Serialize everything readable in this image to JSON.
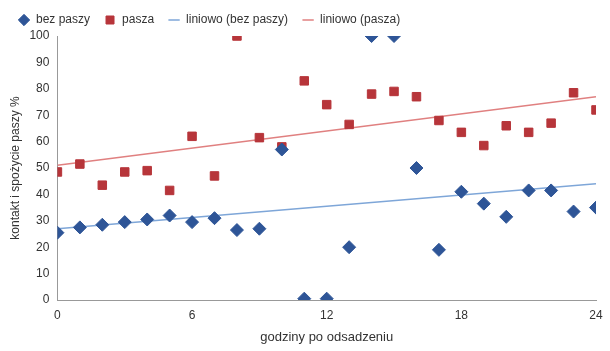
{
  "chart_data": {
    "type": "scatter",
    "x_label": "godziny po odsadzeniu",
    "y_label": "kontakt i spożycie paszy %",
    "xlim": [
      0,
      24
    ],
    "xticks": [
      0,
      6,
      12,
      18,
      24
    ],
    "ylim": [
      0,
      100
    ],
    "yticks": [
      0,
      10,
      20,
      30,
      40,
      50,
      60,
      70,
      80,
      90,
      100
    ],
    "grid": false,
    "legend": "top",
    "series": [
      {
        "name": "bez paszy",
        "type": "scatter",
        "marker": "diamond",
        "color": "#2e5597",
        "x": [
          0,
          1,
          2,
          3,
          4,
          5,
          6,
          7,
          8,
          9,
          10,
          11,
          12,
          13,
          14,
          15,
          16,
          17,
          18,
          19,
          20,
          21,
          22,
          23,
          24
        ],
        "values": [
          25.5,
          27.5,
          28.5,
          29.5,
          30.5,
          32,
          29.5,
          31,
          26.5,
          27,
          57,
          0.5,
          0.5,
          20,
          100,
          100,
          50,
          19,
          41,
          36.5,
          31.5,
          41.5,
          41.5,
          33.5,
          35
        ]
      },
      {
        "name": "pasza",
        "type": "scatter",
        "marker": "square",
        "color": "#b7353a",
        "x": [
          0,
          1,
          2,
          3,
          4,
          5,
          6,
          7,
          8,
          9,
          10,
          11,
          12,
          13,
          14,
          15,
          16,
          17,
          18,
          19,
          20,
          21,
          22,
          23,
          24
        ],
        "values": [
          48.5,
          51.5,
          43.5,
          48.5,
          49,
          41.5,
          62,
          47,
          100,
          61.5,
          58,
          83,
          74,
          66.5,
          78,
          79,
          77,
          68,
          63.5,
          58.5,
          66,
          63.5,
          67,
          78.5,
          72
        ]
      },
      {
        "name": "liniowo (bez paszy)",
        "type": "line",
        "line_style": "solid",
        "color": "#7ea6d8",
        "x": [
          0,
          24
        ],
        "values": [
          27,
          44
        ]
      },
      {
        "name": "liniowo (pasza)",
        "type": "line",
        "line_style": "solid",
        "color": "#e08080",
        "x": [
          0,
          24
        ],
        "values": [
          51,
          77
        ]
      }
    ]
  }
}
